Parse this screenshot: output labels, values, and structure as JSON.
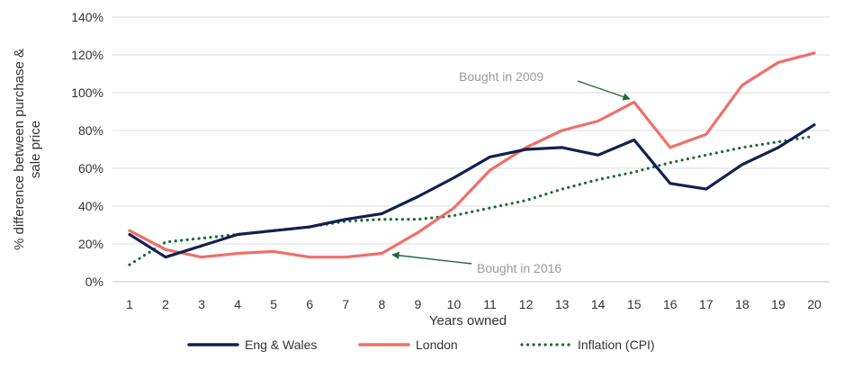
{
  "chart_data": {
    "type": "line",
    "title": "",
    "xlabel": "Years owned",
    "ylabel": "% difference between purchase & sale price",
    "x": [
      1,
      2,
      3,
      4,
      5,
      6,
      7,
      8,
      9,
      10,
      11,
      12,
      13,
      14,
      15,
      16,
      17,
      18,
      19,
      20
    ],
    "ylim": [
      0,
      140
    ],
    "yticks": [
      0,
      20,
      40,
      60,
      80,
      100,
      120,
      140
    ],
    "ytick_labels": [
      "0%",
      "20%",
      "40%",
      "60%",
      "80%",
      "100%",
      "120%",
      "140%"
    ],
    "grid": "horizontal",
    "legend_position": "bottom",
    "series": [
      {
        "name": "Eng & Wales",
        "color": "#13204f",
        "style": "solid",
        "values": [
          25,
          13,
          19,
          25,
          27,
          29,
          33,
          36,
          45,
          55,
          66,
          70,
          71,
          67,
          75,
          52,
          49,
          62,
          71,
          83
        ]
      },
      {
        "name": "London",
        "color": "#ef6f6a",
        "style": "solid",
        "values": [
          27,
          17,
          13,
          15,
          16,
          13,
          13,
          15,
          26,
          39,
          59,
          71,
          80,
          85,
          95,
          71,
          78,
          104,
          116,
          121
        ]
      },
      {
        "name": "Inflation (CPI)",
        "color": "#1e6a36",
        "style": "dotted",
        "values": [
          9,
          21,
          23,
          25,
          27,
          29,
          32,
          33,
          33,
          35,
          39,
          43,
          49,
          54,
          58,
          63,
          67,
          71,
          74,
          77
        ]
      }
    ],
    "annotations": [
      {
        "text": "Bought in 2009",
        "x": 15,
        "y": 95
      },
      {
        "text": "Bought in 2016",
        "x": 8,
        "y": 15
      }
    ]
  }
}
